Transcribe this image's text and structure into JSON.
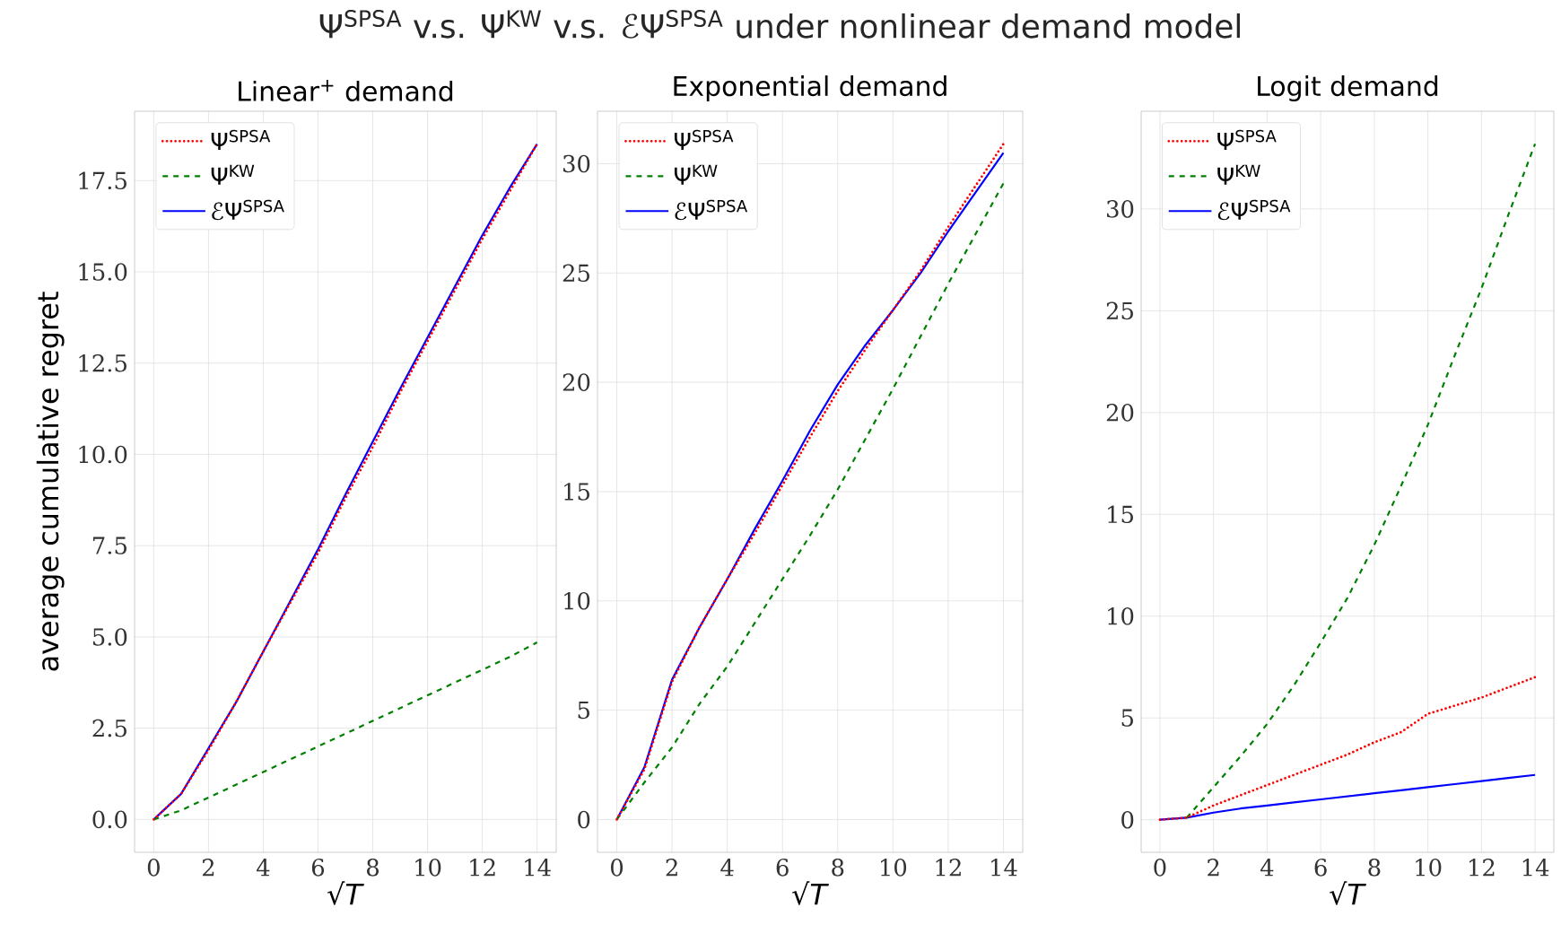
{
  "chart_data": [
    {
      "type": "line",
      "title": "Linear$^{+}$ demand",
      "xlabel": "√*T*",
      "ylabel": "average cumulative regret",
      "annotations": [
        "Ψ$^{SPSA}$ v.s. Ψ$^{KW}$ v.s. ℰΨ$^{SPSA}$ under nonlinear demand model"
      ],
      "x": [
        0,
        1,
        2,
        3,
        4,
        5,
        6,
        7,
        8,
        9,
        10,
        11,
        12,
        13,
        14
      ],
      "series": [
        {
          "name": "Ψ$^{SPSA}$",
          "color": "#ff0000",
          "line_style": "dotted",
          "values": [
            0,
            0.7,
            1.9,
            3.2,
            4.6,
            5.95,
            7.3,
            8.8,
            10.2,
            11.7,
            13.1,
            14.5,
            15.9,
            17.2,
            18.5
          ]
        },
        {
          "name": "Ψ$^{KW}$",
          "color": "#008000",
          "line_style": "dashed",
          "values": [
            0,
            0.25,
            0.6,
            0.95,
            1.3,
            1.65,
            2.0,
            2.35,
            2.7,
            3.05,
            3.4,
            3.75,
            4.1,
            4.45,
            4.85
          ]
        },
        {
          "name": "ℰΨ$^{SPSA}$",
          "color": "#0000ff",
          "line_style": "solid",
          "values": [
            0,
            0.7,
            1.95,
            3.2,
            4.6,
            6.0,
            7.4,
            8.9,
            10.35,
            11.8,
            13.2,
            14.6,
            16.0,
            17.3,
            18.5
          ]
        }
      ],
      "xlim": [
        -0.7,
        14.7
      ],
      "ylim": [
        -0.9,
        19.4
      ],
      "xticks": [
        0,
        2,
        4,
        6,
        8,
        10,
        12,
        14
      ],
      "yticks": [
        {
          "value": 0,
          "label": "0.0"
        },
        {
          "value": 2.5,
          "label": "2.5"
        },
        {
          "value": 5,
          "label": "5.0"
        },
        {
          "value": 7.5,
          "label": "7.5"
        },
        {
          "value": 10,
          "label": "10.0"
        },
        {
          "value": 12.5,
          "label": "12.5"
        },
        {
          "value": 15,
          "label": "15.0"
        },
        {
          "value": 17.5,
          "label": "17.5"
        }
      ],
      "grid": true,
      "legend": "top left"
    },
    {
      "type": "line",
      "title": "Exponential demand",
      "xlabel": "√*T*",
      "x": [
        0,
        1,
        2,
        3,
        4,
        5,
        6,
        7,
        8,
        9,
        10,
        11,
        12,
        13,
        14
      ],
      "series": [
        {
          "name": "Ψ$^{SPSA}$",
          "color": "#ff0000",
          "line_style": "dotted",
          "values": [
            0,
            2.3,
            6.3,
            8.8,
            11.0,
            13.1,
            15.3,
            17.5,
            19.6,
            21.5,
            23.3,
            25.1,
            27.1,
            29.0,
            30.9
          ]
        },
        {
          "name": "Ψ$^{KW}$",
          "color": "#008000",
          "line_style": "dashed",
          "values": [
            0,
            1.7,
            3.3,
            5.3,
            7.0,
            9.0,
            11.0,
            13.0,
            15.1,
            17.4,
            19.7,
            22.1,
            24.5,
            26.8,
            29.1
          ]
        },
        {
          "name": "ℰΨ$^{SPSA}$",
          "color": "#0000ff",
          "line_style": "solid",
          "values": [
            0,
            2.4,
            6.4,
            8.8,
            11.0,
            13.3,
            15.5,
            17.8,
            19.9,
            21.7,
            23.3,
            25.0,
            26.9,
            28.7,
            30.5
          ]
        }
      ],
      "xlim": [
        -0.7,
        14.7
      ],
      "ylim": [
        -1.5,
        32.4
      ],
      "xticks": [
        0,
        2,
        4,
        6,
        8,
        10,
        12,
        14
      ],
      "yticks": [
        0,
        5,
        10,
        15,
        20,
        25,
        30
      ],
      "grid": true,
      "legend": "top left"
    },
    {
      "type": "line",
      "title": "Logit demand",
      "xlabel": "√*T*",
      "x": [
        0,
        1,
        2,
        3,
        4,
        5,
        6,
        7,
        8,
        9,
        10,
        11,
        12,
        13,
        14
      ],
      "series": [
        {
          "name": "Ψ$^{SPSA}$",
          "color": "#ff0000",
          "line_style": "dotted",
          "values": [
            0,
            0.1,
            0.7,
            1.2,
            1.7,
            2.2,
            2.7,
            3.2,
            3.8,
            4.3,
            5.2,
            5.6,
            6.0,
            6.5,
            7.0
          ]
        },
        {
          "name": "Ψ$^{KW}$",
          "color": "#008000",
          "line_style": "dashed",
          "values": [
            null,
            0.1,
            1.6,
            3.1,
            4.7,
            6.6,
            8.7,
            10.9,
            13.5,
            16.4,
            19.4,
            22.8,
            26.1,
            29.7,
            33.2
          ]
        },
        {
          "name": "ℰΨ$^{SPSA}$",
          "color": "#0000ff",
          "line_style": "solid",
          "values": [
            0,
            0.1,
            0.35,
            0.55,
            0.7,
            0.85,
            1.0,
            1.15,
            1.3,
            1.45,
            1.6,
            1.75,
            1.9,
            2.05,
            2.2
          ]
        }
      ],
      "xlim": [
        -0.7,
        14.7
      ],
      "ylim": [
        -1.6,
        34.8
      ],
      "xticks": [
        0,
        2,
        4,
        6,
        8,
        10,
        12,
        14
      ],
      "yticks": [
        0,
        5,
        10,
        15,
        20,
        25,
        30
      ],
      "grid": true,
      "legend": "top left"
    }
  ]
}
